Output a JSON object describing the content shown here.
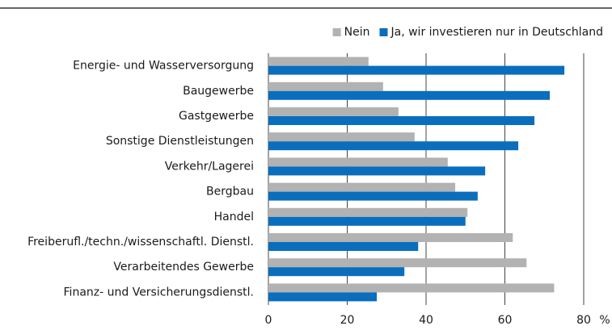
{
  "chart_data": {
    "type": "hbar",
    "categories": [
      "Energie- und Wasserversorgung",
      "Baugewerbe",
      "Gastgewerbe",
      "Sonstige Dienstleistungen",
      "Verkehr/Lagerei",
      "Bergbau",
      "Handel",
      "Freiberufl./techn./wissenschaftl. Dienstl.",
      "Verarbeitendes Gewerbe",
      "Finanz- und Versicherungsdienstl."
    ],
    "series": [
      {
        "name": "Nein",
        "color": "#b2b2b2",
        "values": [
          25.4,
          29.1,
          33,
          37.1,
          45.5,
          47.4,
          50.5,
          62,
          65.5,
          72.5
        ]
      },
      {
        "name": "Ja, wir investieren nur in Deutschland",
        "color": "#0a6ebd",
        "values": [
          75.1,
          71.4,
          67.5,
          63.4,
          55,
          53.1,
          50,
          38,
          34.5,
          27.5
        ]
      }
    ],
    "xlim": [
      0,
      80
    ],
    "xticks": [
      0,
      20,
      40,
      60,
      80
    ],
    "x_unit": "%",
    "grid": true,
    "legend": "top-right"
  }
}
